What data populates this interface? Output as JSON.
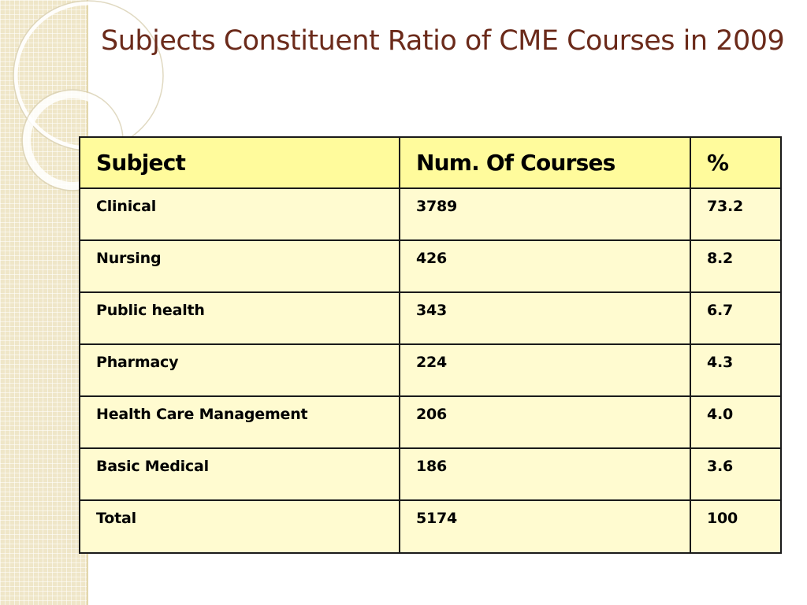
{
  "slide": {
    "title": "Subjects Constituent Ratio of CME Courses in 2009"
  },
  "table": {
    "headers": [
      "Subject",
      "Num. Of Courses",
      "%"
    ],
    "rows": [
      [
        "Clinical",
        "3789",
        "73.2"
      ],
      [
        "Nursing",
        "426",
        "8.2"
      ],
      [
        "Public health",
        "343",
        "6.7"
      ],
      [
        "Pharmacy",
        "224",
        "4.3"
      ],
      [
        "Health Care Management",
        "206",
        "4.0"
      ],
      [
        "Basic Medical",
        "186",
        "3.6"
      ],
      [
        "Total",
        "5174",
        "100"
      ]
    ]
  },
  "colors": {
    "title": "#6b2a1a",
    "header_fill": "#fffb9c",
    "cell_fill": "#fffbd0",
    "side_strip": "#efe6c8"
  }
}
